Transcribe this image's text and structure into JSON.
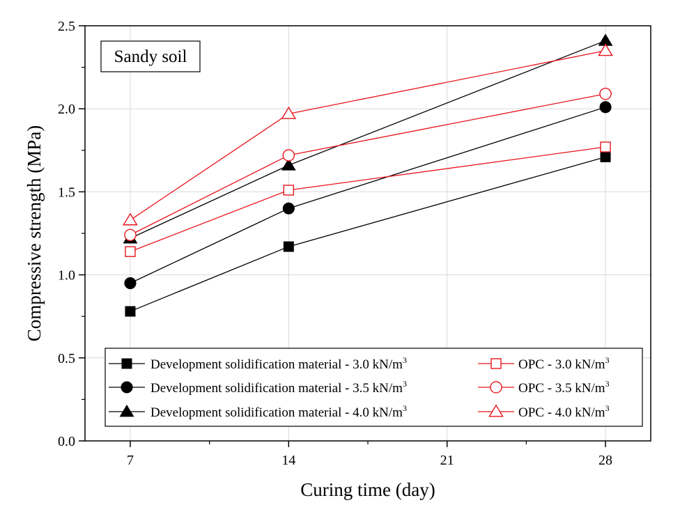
{
  "chart_data": {
    "type": "line",
    "annotation": "Sandy soil",
    "xlabel": "Curing time (day)",
    "ylabel": "Compressive strength (MPa)",
    "x": [
      7,
      14,
      28
    ],
    "xlim": [
      5,
      30
    ],
    "ylim": [
      0,
      2.5
    ],
    "xticks": [
      "7",
      "14",
      "21",
      "28"
    ],
    "yticks": [
      "0.0",
      "0.5",
      "1.0",
      "1.5",
      "2.0",
      "2.5"
    ],
    "grid": true,
    "legend_position": "bottom",
    "series": [
      {
        "name": "Development solidification material - 3.0 kN/m",
        "unit_sup": "3",
        "marker": "square",
        "filled": true,
        "color": "#000000",
        "values": [
          0.78,
          1.17,
          1.71
        ]
      },
      {
        "name": "Development solidification material - 3.5 kN/m",
        "unit_sup": "3",
        "marker": "circle",
        "filled": true,
        "color": "#000000",
        "values": [
          0.95,
          1.4,
          2.01
        ]
      },
      {
        "name": "Development solidification material - 4.0 kN/m",
        "unit_sup": "3",
        "marker": "triangle",
        "filled": true,
        "color": "#000000",
        "values": [
          1.22,
          1.66,
          2.41
        ]
      },
      {
        "name": "OPC - 3.0 kN/m",
        "unit_sup": "3",
        "marker": "square",
        "filled": false,
        "color": "#e8141b",
        "values": [
          1.14,
          1.51,
          1.77
        ]
      },
      {
        "name": "OPC - 3.5 kN/m",
        "unit_sup": "3",
        "marker": "circle",
        "filled": false,
        "color": "#e8141b",
        "values": [
          1.24,
          1.72,
          2.09
        ]
      },
      {
        "name": "OPC - 4.0 kN/m",
        "unit_sup": "3",
        "marker": "triangle",
        "filled": false,
        "color": "#e8141b",
        "values": [
          1.33,
          1.97,
          2.35
        ]
      }
    ]
  }
}
